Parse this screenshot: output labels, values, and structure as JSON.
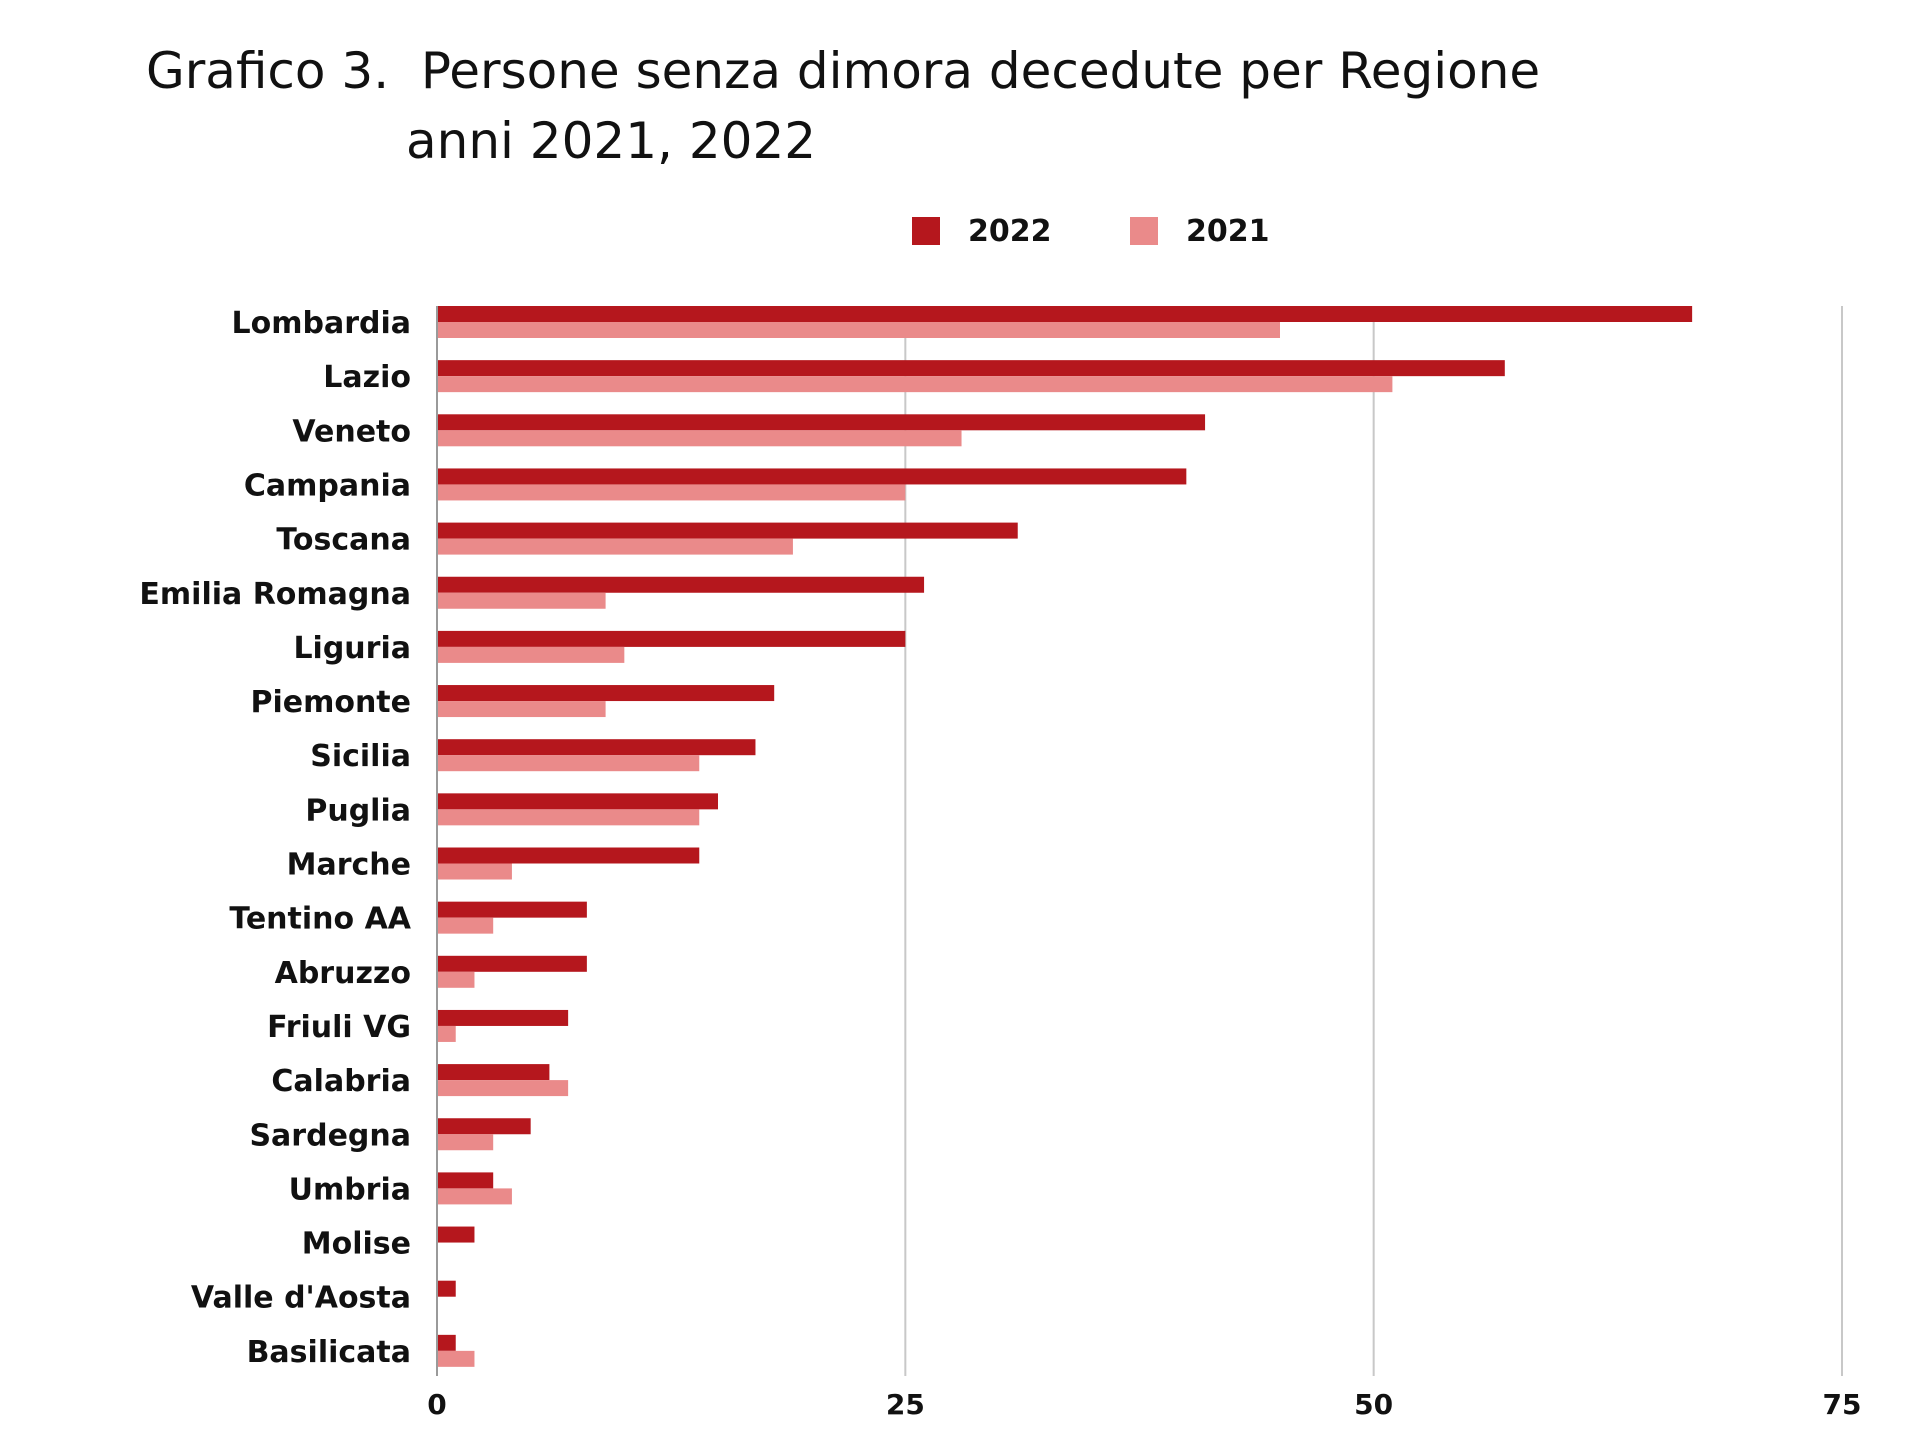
{
  "title_line_1": "Grafico 3.  Persone senza dimora decedute per Regione",
  "title_line_2": "anni 2021, 2022",
  "chart_data": {
    "type": "bar",
    "orientation": "horizontal",
    "title": "Grafico 3.  Persone senza dimora decedute per Regione anni 2021, 2022",
    "xlabel": "",
    "ylabel": "",
    "categories": [
      "Lombardia",
      "Lazio",
      "Veneto",
      "Campania",
      "Toscana",
      "Emilia Romagna",
      "Liguria",
      "Piemonte",
      "Sicilia",
      "Puglia",
      "Marche",
      "Tentino AA",
      "Abruzzo",
      "Friuli VG",
      "Calabria",
      "Sardegna",
      "Umbria",
      "Molise",
      "Valle d'Aosta",
      "Basilicata"
    ],
    "series": [
      {
        "name": "2022",
        "color": "#b5171d",
        "values": [
          67,
          57,
          41,
          40,
          31,
          26,
          25,
          18,
          17,
          15,
          14,
          8,
          8,
          7,
          6,
          5,
          3,
          2,
          1,
          1
        ]
      },
      {
        "name": "2021",
        "color": "#ea8a8a",
        "values": [
          45,
          51,
          28,
          25,
          19,
          9,
          10,
          9,
          14,
          14,
          4,
          3,
          2,
          1,
          7,
          3,
          4,
          0,
          0,
          2
        ]
      }
    ],
    "xlim": [
      0,
      75
    ],
    "x_ticks": [
      0,
      25,
      50,
      75
    ],
    "x_tick_labels": [
      "0",
      "25",
      "50",
      "75"
    ],
    "grid": "vertical",
    "legend_position": "top"
  }
}
